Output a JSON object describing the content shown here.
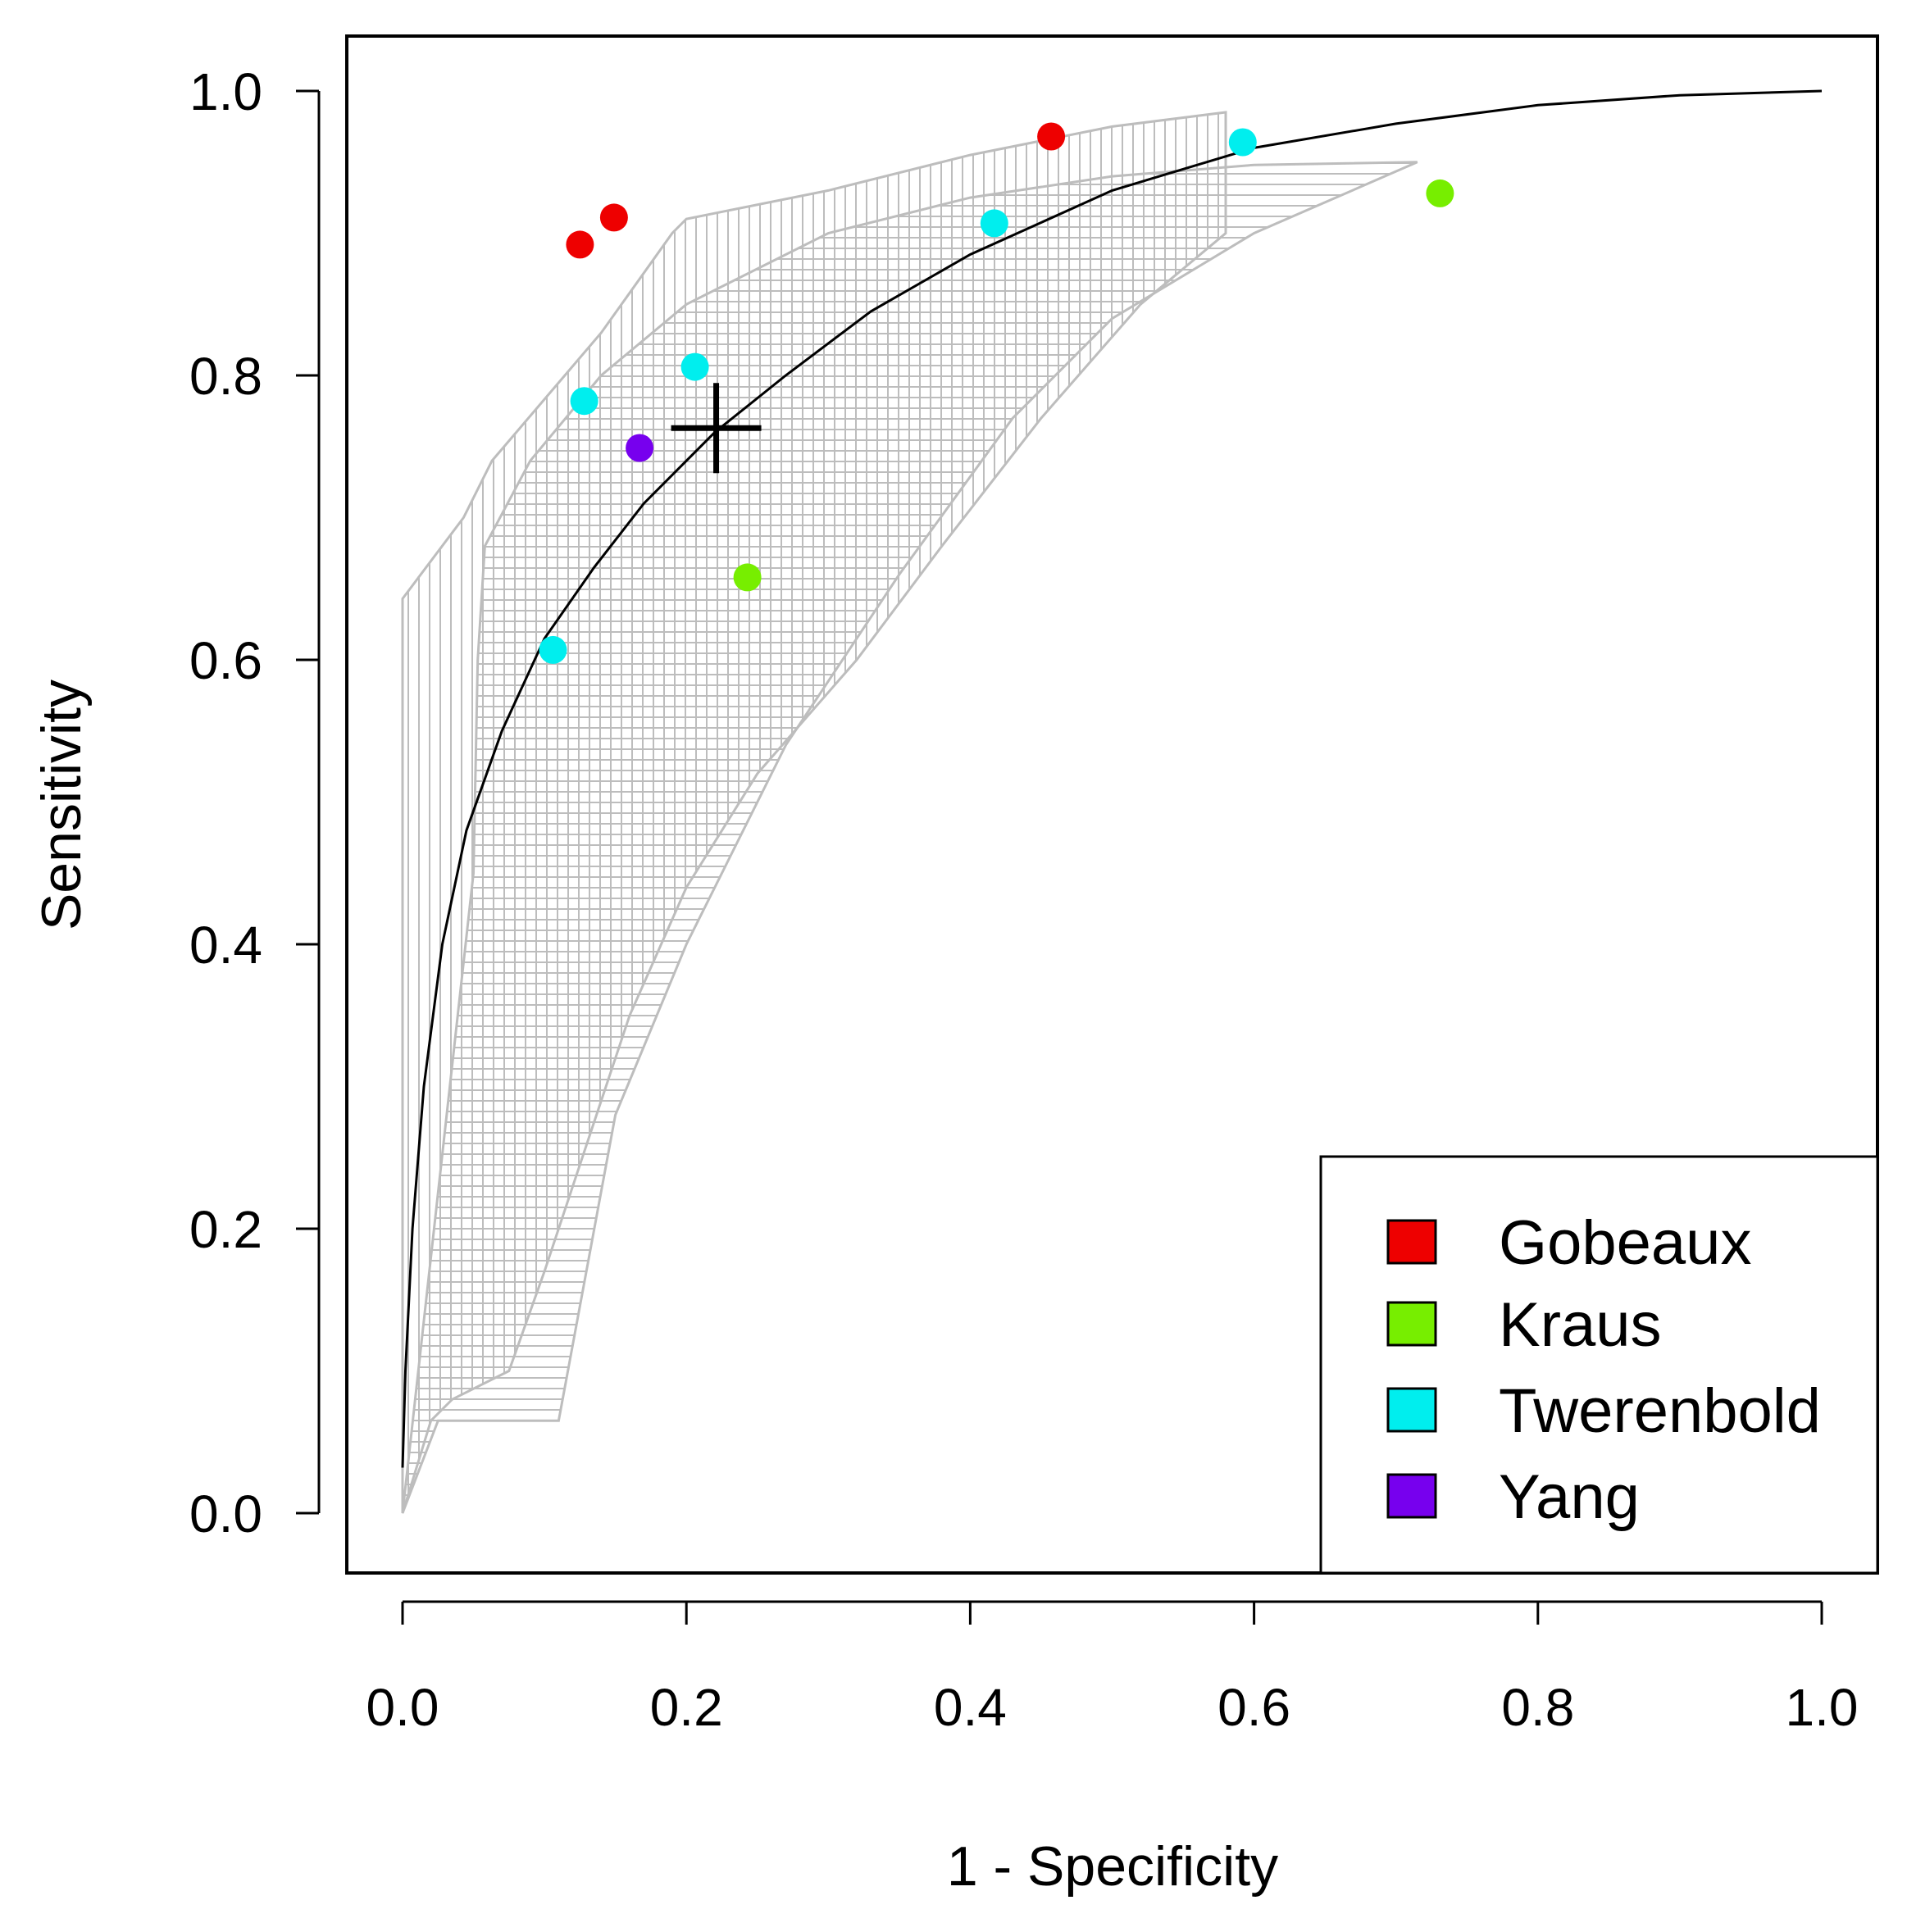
{
  "chart_data": {
    "type": "scatter",
    "xlabel": "1 - Specificity",
    "ylabel": "Sensitivity",
    "xlim": [
      0.0,
      1.0
    ],
    "ylim": [
      0.0,
      1.0
    ],
    "x_ticks": [
      "0.0",
      "0.2",
      "0.4",
      "0.6",
      "0.8",
      "1.0"
    ],
    "y_ticks": [
      "0.0",
      "0.2",
      "0.4",
      "0.6",
      "0.8",
      "1.0"
    ],
    "grid": false,
    "legend_position": "bottom-right",
    "series": [
      {
        "name": "Gobeaux",
        "color": "#ee0000",
        "points": [
          [
            0.125,
            0.892
          ],
          [
            0.149,
            0.911
          ],
          [
            0.457,
            0.968
          ]
        ]
      },
      {
        "name": "Kraus",
        "color": "#77ee00",
        "points": [
          [
            0.243,
            0.658
          ],
          [
            0.731,
            0.928
          ]
        ]
      },
      {
        "name": "Twerenbold",
        "color": "#00eeee",
        "points": [
          [
            0.106,
            0.607
          ],
          [
            0.128,
            0.782
          ],
          [
            0.206,
            0.806
          ],
          [
            0.417,
            0.907
          ],
          [
            0.592,
            0.964
          ]
        ]
      },
      {
        "name": "Yang",
        "color": "#7700ee",
        "points": [
          [
            0.167,
            0.749
          ]
        ]
      }
    ],
    "sroc_curve": [
      [
        0.0,
        0.032
      ],
      [
        0.002,
        0.1
      ],
      [
        0.007,
        0.2
      ],
      [
        0.015,
        0.3
      ],
      [
        0.028,
        0.4
      ],
      [
        0.045,
        0.48
      ],
      [
        0.07,
        0.55
      ],
      [
        0.1,
        0.615
      ],
      [
        0.135,
        0.665
      ],
      [
        0.17,
        0.71
      ],
      [
        0.22,
        0.76
      ],
      [
        0.27,
        0.8
      ],
      [
        0.33,
        0.845
      ],
      [
        0.4,
        0.885
      ],
      [
        0.5,
        0.93
      ],
      [
        0.6,
        0.96
      ],
      [
        0.7,
        0.977
      ],
      [
        0.8,
        0.99
      ],
      [
        0.9,
        0.997
      ],
      [
        1.0,
        1.0
      ]
    ],
    "summary_point": {
      "x": 0.221,
      "y": 0.763
    },
    "confidence_region": [
      [
        0.0,
        0.643
      ],
      [
        0.043,
        0.7
      ],
      [
        0.063,
        0.74
      ],
      [
        0.14,
        0.83
      ],
      [
        0.19,
        0.9
      ],
      [
        0.2,
        0.91
      ],
      [
        0.3,
        0.93
      ],
      [
        0.4,
        0.955
      ],
      [
        0.5,
        0.975
      ],
      [
        0.58,
        0.985
      ],
      [
        0.58,
        0.9
      ],
      [
        0.52,
        0.85
      ],
      [
        0.45,
        0.77
      ],
      [
        0.38,
        0.68
      ],
      [
        0.32,
        0.6
      ],
      [
        0.25,
        0.52
      ],
      [
        0.2,
        0.44
      ],
      [
        0.16,
        0.35
      ],
      [
        0.13,
        0.26
      ],
      [
        0.1,
        0.17
      ],
      [
        0.075,
        0.1
      ],
      [
        0.035,
        0.08
      ],
      [
        0.02,
        0.065
      ],
      [
        0.0,
        0.0
      ]
    ],
    "prediction_region": [
      [
        0.0,
        0.0
      ],
      [
        0.05,
        0.45
      ],
      [
        0.053,
        0.6
      ],
      [
        0.058,
        0.68
      ],
      [
        0.09,
        0.74
      ],
      [
        0.14,
        0.8
      ],
      [
        0.2,
        0.85
      ],
      [
        0.3,
        0.9
      ],
      [
        0.4,
        0.925
      ],
      [
        0.5,
        0.94
      ],
      [
        0.6,
        0.948
      ],
      [
        0.715,
        0.95
      ],
      [
        0.6,
        0.9
      ],
      [
        0.5,
        0.84
      ],
      [
        0.43,
        0.77
      ],
      [
        0.35,
        0.66
      ],
      [
        0.27,
        0.54
      ],
      [
        0.2,
        0.4
      ],
      [
        0.15,
        0.28
      ],
      [
        0.11,
        0.065
      ],
      [
        0.025,
        0.065
      ]
    ]
  }
}
